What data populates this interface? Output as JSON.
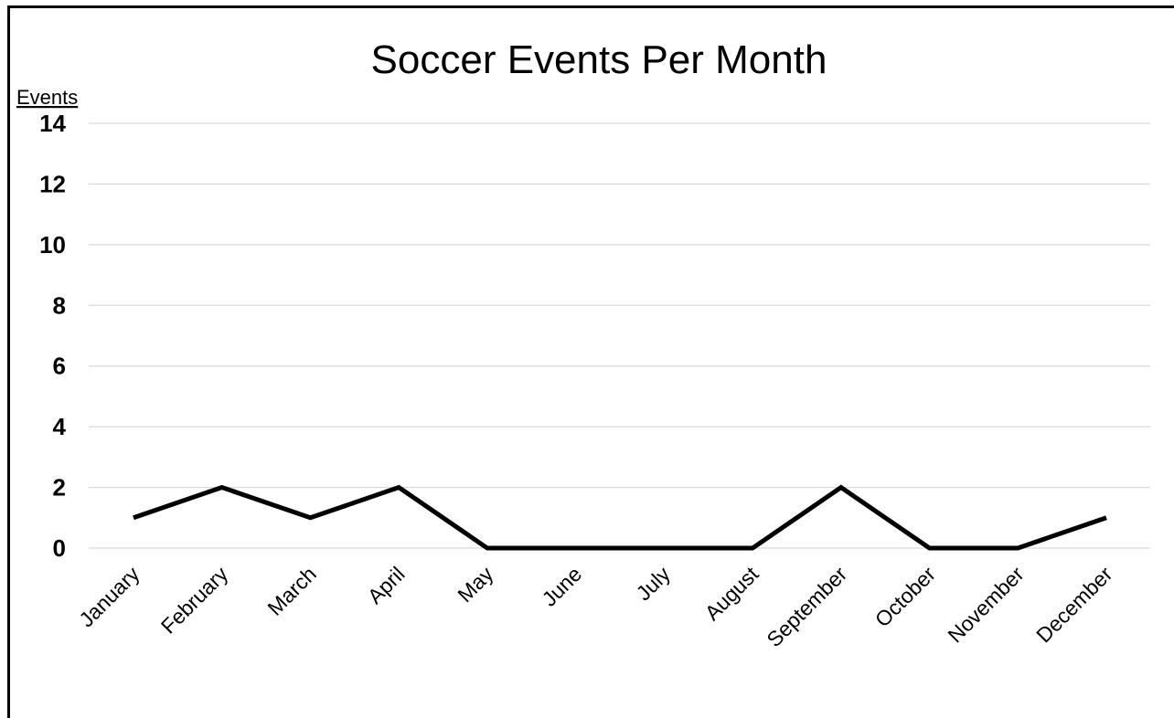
{
  "chart_data": {
    "type": "line",
    "title": "Soccer Events Per Month",
    "xlabel": "",
    "ylabel": "Events",
    "categories": [
      "January",
      "February",
      "March",
      "April",
      "May",
      "June",
      "July",
      "August",
      "September",
      "October",
      "November",
      "December"
    ],
    "series": [
      {
        "values": [
          1,
          2,
          1,
          2,
          0,
          0,
          0,
          0,
          2,
          0,
          0,
          1
        ]
      }
    ],
    "ylim": [
      0,
      14
    ],
    "yticks": [
      "0",
      "2",
      "4",
      "6",
      "8",
      "10",
      "12",
      "14"
    ],
    "grid": true,
    "legend": "none",
    "line_color": "#000000",
    "grid_color": "#d9d9d9"
  }
}
